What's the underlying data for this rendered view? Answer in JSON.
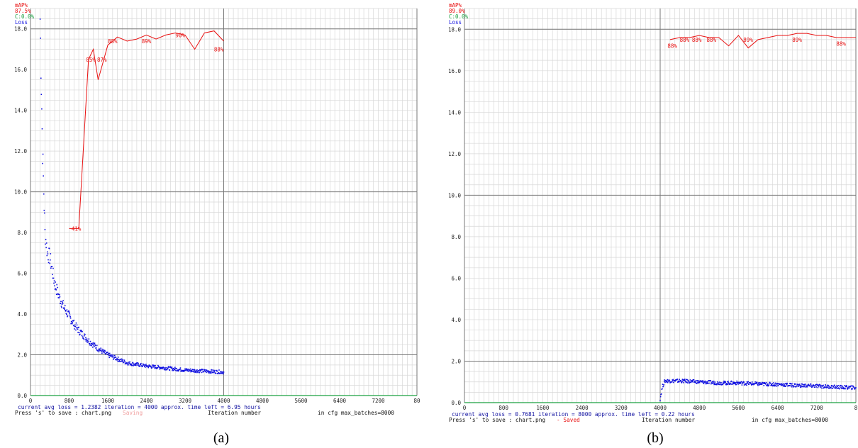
{
  "chart_data": [
    {
      "type": "line",
      "caption": "(a)",
      "legend": {
        "map_label": "mAP%",
        "map_value": "87.5%",
        "c_label": "C:0.0%",
        "loss_label": "Loss",
        "colors": {
          "map": "#e81010",
          "c": "#1aa040",
          "loss": "#1010e0"
        }
      },
      "xlabel": "Iteration number",
      "xlim": [
        0,
        8000
      ],
      "ylim": [
        0,
        19
      ],
      "xticks": [
        "0",
        "800",
        "1600",
        "2400",
        "3200",
        "4000",
        "4800",
        "5600",
        "6400",
        "7200",
        "80"
      ],
      "yticks": [
        "0.0",
        "2.0",
        "4.0",
        "6.0",
        "8.0",
        "10.0",
        "12.0",
        "14.0",
        "16.0",
        "18.0"
      ],
      "status_line": "current avg loss = 1.2382    iteration = 4000    approx. time left = 6.95 hours",
      "save_line": "Press 's' to save : chart.png",
      "saved_tag": "Saving",
      "cfg_line": "in cfg max_batches=8000",
      "map_series": {
        "name": "mAP%",
        "x": [
          800,
          1000,
          1200,
          1300,
          1400,
          1600,
          1800,
          2000,
          2200,
          2400,
          2600,
          2800,
          3000,
          3200,
          3400,
          3600,
          3800,
          4000
        ],
        "y": [
          8.2,
          8.2,
          16.5,
          17.0,
          15.5,
          17.2,
          17.6,
          17.4,
          17.5,
          17.7,
          17.5,
          17.7,
          17.8,
          17.7,
          17.0,
          17.8,
          17.9,
          17.4
        ]
      },
      "map_labels": [
        {
          "x": 850,
          "y": 8.2,
          "text": "41%"
        },
        {
          "x": 1150,
          "y": 16.5,
          "text": "85%"
        },
        {
          "x": 1380,
          "y": 16.5,
          "text": "87%"
        },
        {
          "x": 1600,
          "y": 17.4,
          "text": "88%"
        },
        {
          "x": 2300,
          "y": 17.4,
          "text": "89%"
        },
        {
          "x": 3000,
          "y": 17.7,
          "text": "90%"
        },
        {
          "x": 3800,
          "y": 17.0,
          "text": "88%"
        }
      ],
      "loss_series": {
        "name": "Loss",
        "x": [
          200,
          250,
          300,
          350,
          400,
          500,
          600,
          700,
          800,
          900,
          1000,
          1200,
          1400,
          1600,
          1800,
          2000,
          2400,
          2800,
          3200,
          3600,
          4000
        ],
        "y": [
          18.5,
          12.0,
          8.0,
          7.0,
          6.8,
          5.5,
          4.8,
          4.3,
          3.9,
          3.5,
          3.2,
          2.7,
          2.3,
          2.0,
          1.8,
          1.6,
          1.45,
          1.35,
          1.25,
          1.2,
          1.15
        ]
      }
    },
    {
      "type": "line",
      "caption": "(b)",
      "legend": {
        "map_label": "mAP%",
        "map_value": "89.0%",
        "c_label": "C:0.0%",
        "loss_label": "Loss",
        "colors": {
          "map": "#e81010",
          "c": "#1aa040",
          "loss": "#1010e0"
        }
      },
      "xlabel": "Iteration number",
      "xlim": [
        0,
        8000
      ],
      "ylim": [
        0,
        19
      ],
      "xticks": [
        "0",
        "800",
        "1600",
        "2400",
        "3200",
        "4000",
        "4800",
        "5600",
        "6400",
        "7200",
        "8"
      ],
      "yticks": [
        "0.0",
        "2.0",
        "4.0",
        "6.0",
        "8.0",
        "10.0",
        "12.0",
        "14.0",
        "16.0",
        "18.0"
      ],
      "status_line": "current avg loss = 0.7681    iteration = 8000    approx. time left = 0.22 hours",
      "save_line": "Press 's' to save : chart.png",
      "saved_tag": "- Saved",
      "cfg_line": "in cfg max_batches=8000",
      "map_series": {
        "name": "mAP%",
        "x": [
          4200,
          4400,
          4600,
          4800,
          5000,
          5200,
          5400,
          5600,
          5800,
          6000,
          6200,
          6400,
          6600,
          6800,
          7000,
          7200,
          7400,
          7600,
          8000
        ],
        "y": [
          17.5,
          17.6,
          17.6,
          17.7,
          17.6,
          17.6,
          17.2,
          17.7,
          17.1,
          17.5,
          17.6,
          17.7,
          17.7,
          17.8,
          17.8,
          17.7,
          17.7,
          17.6,
          17.6
        ]
      },
      "map_labels": [
        {
          "x": 4150,
          "y": 17.2,
          "text": "88%"
        },
        {
          "x": 4400,
          "y": 17.5,
          "text": "88%"
        },
        {
          "x": 4650,
          "y": 17.5,
          "text": "88%"
        },
        {
          "x": 4950,
          "y": 17.5,
          "text": "88%"
        },
        {
          "x": 5700,
          "y": 17.5,
          "text": "89%"
        },
        {
          "x": 6700,
          "y": 17.5,
          "text": "89%"
        },
        {
          "x": 7600,
          "y": 17.3,
          "text": "88%"
        }
      ],
      "loss_series": {
        "name": "Loss",
        "x": [
          4000,
          4050,
          4100,
          4400,
          4800,
          5200,
          5600,
          6000,
          6400,
          6800,
          7200,
          7600,
          8000
        ],
        "y": [
          0.2,
          0.8,
          1.05,
          1.05,
          1.0,
          0.95,
          0.95,
          0.9,
          0.88,
          0.83,
          0.8,
          0.75,
          0.72
        ]
      }
    }
  ]
}
